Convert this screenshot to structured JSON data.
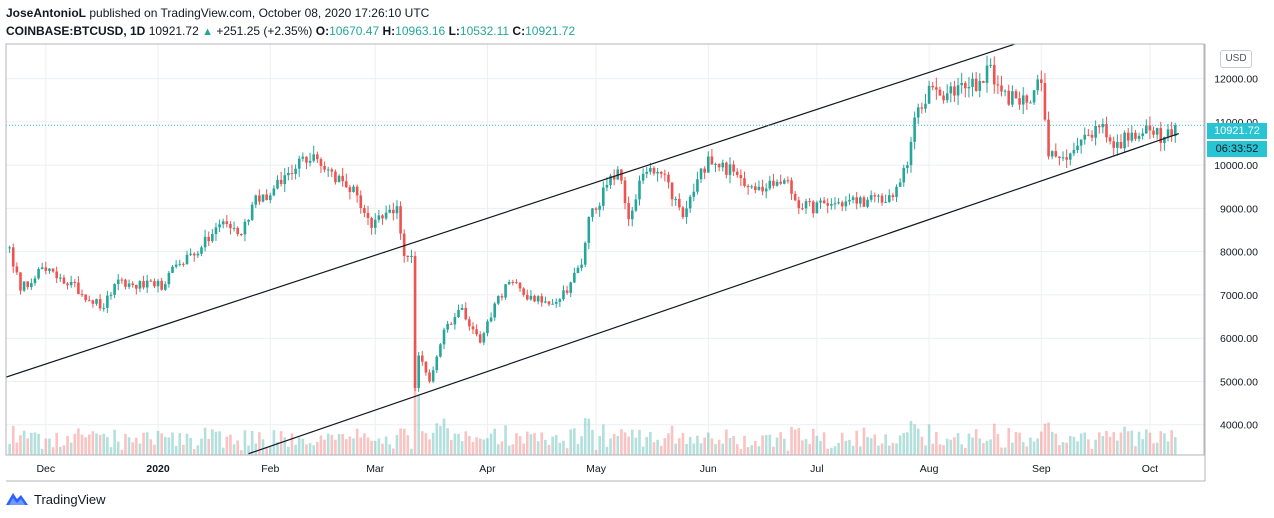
{
  "header": {
    "author": "JoseAntonioL",
    "published": "published on TradingView.com, October 08, 2020 17:26:10 UTC",
    "symbol": "COINBASE:BTCUSD, 1D",
    "last": "10921.72",
    "change": "+251.25 (+2.35%)",
    "o_label": "O:",
    "o": "10670.47",
    "h_label": "H:",
    "h": "10963.16",
    "l_label": "L:",
    "l": "10532.11",
    "c_label": "C:",
    "c": "10921.72"
  },
  "currency_label": "USD",
  "last_price_tag": "10921.72",
  "countdown_tag": "06:33:52",
  "footer": {
    "brand": "TradingView"
  },
  "colors": {
    "up": "#26a69a",
    "down": "#ef5350",
    "accent": "#27c4d4",
    "grid": "#eceff2"
  },
  "chart_data": {
    "type": "candlestick",
    "interval": "1D",
    "ylim": [
      3300,
      12800
    ],
    "y_ticks": [
      4000,
      5000,
      6000,
      7000,
      8000,
      9000,
      10000,
      11000,
      12000
    ],
    "y_tick_labels": [
      "4000.00",
      "5000.00",
      "6000.00",
      "7000.00",
      "8000.00",
      "9000.00",
      "10000.00",
      "11000.00",
      "12000.00"
    ],
    "x_ticks": [
      {
        "date": "2019-12-01",
        "label": "Dec"
      },
      {
        "date": "2020-01-01",
        "label": "2020"
      },
      {
        "date": "2020-02-01",
        "label": "Feb"
      },
      {
        "date": "2020-03-01",
        "label": "Mar"
      },
      {
        "date": "2020-04-01",
        "label": "Apr"
      },
      {
        "date": "2020-05-01",
        "label": "May"
      },
      {
        "date": "2020-06-01",
        "label": "Jun"
      },
      {
        "date": "2020-07-01",
        "label": "Jul"
      },
      {
        "date": "2020-08-01",
        "label": "Aug"
      },
      {
        "date": "2020-09-01",
        "label": "Sep"
      },
      {
        "date": "2020-10-01",
        "label": "Oct"
      }
    ],
    "last_close": 10921.72,
    "close_anchors": [
      {
        "date": "2019-11-21",
        "close": 8100
      },
      {
        "date": "2019-11-24",
        "close": 7100
      },
      {
        "date": "2019-11-29",
        "close": 7600
      },
      {
        "date": "2019-12-05",
        "close": 7400
      },
      {
        "date": "2019-12-17",
        "close": 6700
      },
      {
        "date": "2019-12-20",
        "close": 7250
      },
      {
        "date": "2019-12-31",
        "close": 7200
      },
      {
        "date": "2020-01-03",
        "close": 7250
      },
      {
        "date": "2020-01-06",
        "close": 7700
      },
      {
        "date": "2020-01-13",
        "close": 8100
      },
      {
        "date": "2020-01-19",
        "close": 8700
      },
      {
        "date": "2020-01-24",
        "close": 8400
      },
      {
        "date": "2020-01-28",
        "close": 9300
      },
      {
        "date": "2020-02-01",
        "close": 9300
      },
      {
        "date": "2020-02-09",
        "close": 10150
      },
      {
        "date": "2020-02-13",
        "close": 10250
      },
      {
        "date": "2020-02-17",
        "close": 9900
      },
      {
        "date": "2020-02-25",
        "close": 9300
      },
      {
        "date": "2020-02-29",
        "close": 8550
      },
      {
        "date": "2020-03-07",
        "close": 9050
      },
      {
        "date": "2020-03-09",
        "close": 7900
      },
      {
        "date": "2020-03-11",
        "close": 7900
      },
      {
        "date": "2020-03-12",
        "close": 4850
      },
      {
        "date": "2020-03-13",
        "close": 5600
      },
      {
        "date": "2020-03-16",
        "close": 5000
      },
      {
        "date": "2020-03-20",
        "close": 6200
      },
      {
        "date": "2020-03-25",
        "close": 6700
      },
      {
        "date": "2020-03-30",
        "close": 5900
      },
      {
        "date": "2020-04-03",
        "close": 6800
      },
      {
        "date": "2020-04-07",
        "close": 7300
      },
      {
        "date": "2020-04-14",
        "close": 6850
      },
      {
        "date": "2020-04-21",
        "close": 6900
      },
      {
        "date": "2020-04-27",
        "close": 7700
      },
      {
        "date": "2020-04-29",
        "close": 8800
      },
      {
        "date": "2020-05-07",
        "close": 9900
      },
      {
        "date": "2020-05-10",
        "close": 8750
      },
      {
        "date": "2020-05-14",
        "close": 9800
      },
      {
        "date": "2020-05-19",
        "close": 9800
      },
      {
        "date": "2020-05-25",
        "close": 8800
      },
      {
        "date": "2020-06-01",
        "close": 10200
      },
      {
        "date": "2020-06-10",
        "close": 9700
      },
      {
        "date": "2020-06-15",
        "close": 9500
      },
      {
        "date": "2020-06-22",
        "close": 9650
      },
      {
        "date": "2020-06-27",
        "close": 9000
      },
      {
        "date": "2020-07-05",
        "close": 9100
      },
      {
        "date": "2020-07-15",
        "close": 9200
      },
      {
        "date": "2020-07-20",
        "close": 9150
      },
      {
        "date": "2020-07-24",
        "close": 9600
      },
      {
        "date": "2020-07-26",
        "close": 10000
      },
      {
        "date": "2020-07-28",
        "close": 11100
      },
      {
        "date": "2020-08-02",
        "close": 11800
      },
      {
        "date": "2020-08-05",
        "close": 11500
      },
      {
        "date": "2020-08-10",
        "close": 11900
      },
      {
        "date": "2020-08-16",
        "close": 11900
      },
      {
        "date": "2020-08-17",
        "close": 12300
      },
      {
        "date": "2020-08-21",
        "close": 11700
      },
      {
        "date": "2020-08-26",
        "close": 11400
      },
      {
        "date": "2020-09-01",
        "close": 11900
      },
      {
        "date": "2020-09-03",
        "close": 10200
      },
      {
        "date": "2020-09-05",
        "close": 10200
      },
      {
        "date": "2020-09-10",
        "close": 10350
      },
      {
        "date": "2020-09-14",
        "close": 10700
      },
      {
        "date": "2020-09-18",
        "close": 10950
      },
      {
        "date": "2020-09-21",
        "close": 10400
      },
      {
        "date": "2020-09-26",
        "close": 10750
      },
      {
        "date": "2020-10-01",
        "close": 10800
      },
      {
        "date": "2020-10-05",
        "close": 10650
      },
      {
        "date": "2020-10-07",
        "close": 10670
      },
      {
        "date": "2020-10-08",
        "close": 10921.72
      }
    ],
    "trend_lines": [
      {
        "name": "channel-upper",
        "points": [
          {
            "date": "2019-11-20",
            "price": 5100
          },
          {
            "date": "2020-09-01",
            "price": 13000
          }
        ]
      },
      {
        "name": "channel-lower",
        "points": [
          {
            "date": "2020-01-26",
            "price": 3330
          },
          {
            "date": "2020-10-09",
            "price": 10730
          }
        ]
      }
    ]
  }
}
